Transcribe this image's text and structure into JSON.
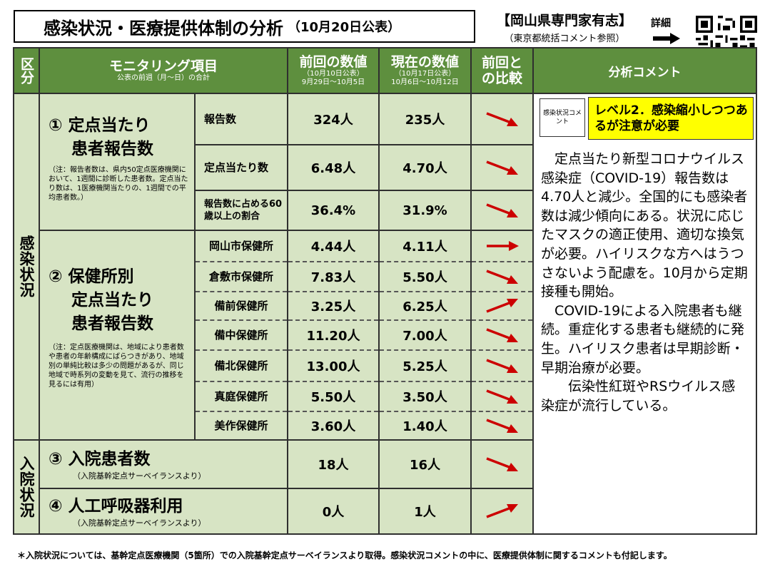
{
  "title": {
    "main": "感染状況・医療提供体制の分析",
    "date": "（10月20日公表）"
  },
  "expert": {
    "name": "【岡山県専門家有志】",
    "sub": "（東京都統括コメント参照）"
  },
  "detail_label": "詳細",
  "header": {
    "kubun": "区分",
    "item": "モニタリング項目",
    "item_sub": "公表の前週（月～日）の合計",
    "prev": "前回の数値",
    "prev_sub1": "（10月10日公表）",
    "prev_sub2": "9月29日～10月5日",
    "curr": "現在の数値",
    "curr_sub1": "（10月17日公表）",
    "curr_sub2": "10月6日～10月12日",
    "compare": "前回との比較",
    "comment": "分析コメント"
  },
  "category1": "感染状況",
  "category2": "入院状況",
  "section1": {
    "title_line1": "① 定点当たり",
    "title_line2": "患者報告数",
    "note": "（注：報告者数は、県内50定点医療機関において、1週間に診断した患者数。定点当たり数は、1医療機関当たりの、1週間での平均患者数。）",
    "rows": [
      {
        "label": "報告数",
        "prev": "324人",
        "curr": "235人",
        "trend": "down"
      },
      {
        "label": "定点当たり数",
        "prev": "6.48人",
        "curr": "4.70人",
        "trend": "down"
      },
      {
        "label": "報告数に占める60歳以上の割合",
        "prev": "36.4%",
        "curr": "31.9%",
        "trend": "down"
      }
    ]
  },
  "section2": {
    "title_line1": "② 保健所別",
    "title_line2": "定点当たり",
    "title_line3": "患者報告数",
    "note": "（注：定点医療機関は、地域により患者数や患者の年齢構成にばらつきがあり、地域別の単純比較は多少の問題があるが、同じ地域で時系列の変動を見て、流行の推移を見るには有用）",
    "rows": [
      {
        "label": "岡山市保健所",
        "prev": "4.44人",
        "curr": "4.11人",
        "trend": "flat"
      },
      {
        "label": "倉敷市保健所",
        "prev": "7.83人",
        "curr": "5.50人",
        "trend": "down"
      },
      {
        "label": "備前保健所",
        "prev": "3.25人",
        "curr": "6.25人",
        "trend": "up"
      },
      {
        "label": "備中保健所",
        "prev": "11.20人",
        "curr": "7.00人",
        "trend": "down"
      },
      {
        "label": "備北保健所",
        "prev": "13.00人",
        "curr": "5.25人",
        "trend": "down"
      },
      {
        "label": "真庭保健所",
        "prev": "5.50人",
        "curr": "3.50人",
        "trend": "down"
      },
      {
        "label": "美作保健所",
        "prev": "3.60人",
        "curr": "1.40人",
        "trend": "down"
      }
    ]
  },
  "section3": {
    "title": "③ 入院患者数",
    "sub": "（入院基幹定点サーベイランスより）",
    "prev": "18人",
    "curr": "16人",
    "trend": "down"
  },
  "section4": {
    "title": "④ 人工呼吸器利用",
    "sub": "（入院基幹定点サーベイランスより）",
    "prev": "0人",
    "curr": "1人",
    "trend": "up"
  },
  "comment": {
    "level_label": "感染状況コメント",
    "level_text": "レベル2．感染縮小しつつあるが注意が必要",
    "para1": "定点当たり新型コロナウイルス感染症（COVID-19）報告数は4.70人と減少。全国的にも感染者数は減少傾向にある。状況に応じたマスクの適正使用、適切な換気が必要。ハイリスクな方へはうつさないよう配慮を。10月から定期接種も開始。",
    "para2": "COVID-19による入院患者も継続。重症化する患者も継続的に発生。ハイリスク患者は早期診断・早期治療が必要。",
    "para3": "伝染性紅斑やRSウイルス感染症が流行している。"
  },
  "footnote": "＊入院状況については、基幹定点医療機関（5箇所）での入院基幹定点サーベイランスより取得。感染状況コメントの中に、医療提供体制に関するコメントも付記します。",
  "colors": {
    "header_green": "#5e8f3e",
    "light_green": "#d7e4c4",
    "arrow_red": "#cc0000",
    "level_yellow": "#ffff00"
  }
}
